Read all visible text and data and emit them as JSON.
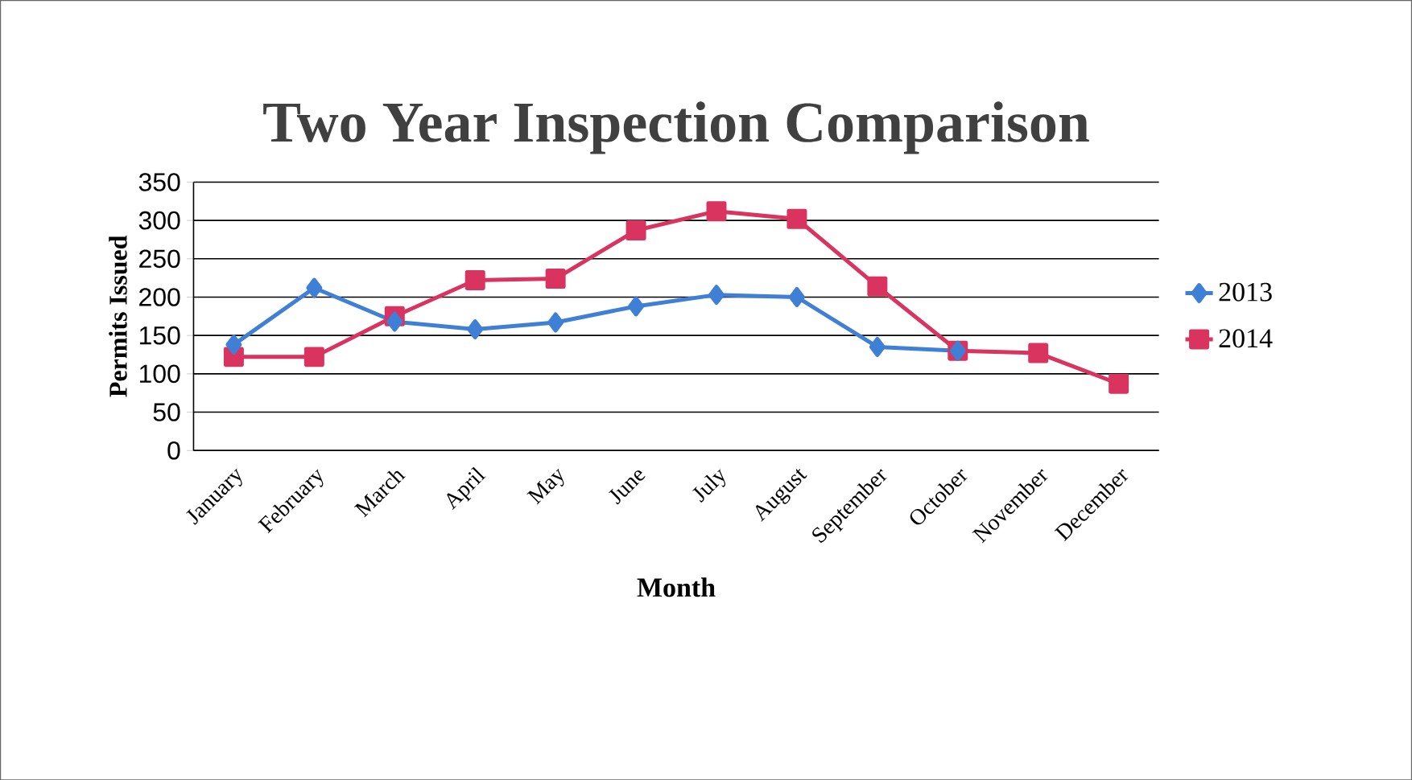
{
  "chart_data": {
    "type": "line",
    "title": "Two Year Inspection Comparison",
    "xlabel": "Month",
    "ylabel": "Permits Issued",
    "categories": [
      "January",
      "February",
      "March",
      "April",
      "May",
      "June",
      "July",
      "August",
      "September",
      "October",
      "November",
      "December"
    ],
    "series": [
      {
        "name": "2013",
        "color": "#3f7fd6",
        "marker": "diamond",
        "values": [
          138,
          212,
          168,
          158,
          167,
          188,
          203,
          200,
          135,
          130,
          null,
          null
        ]
      },
      {
        "name": "2014",
        "color": "#d9345f",
        "marker": "square",
        "values": [
          122,
          122,
          175,
          222,
          224,
          287,
          312,
          302,
          214,
          130,
          127,
          87
        ]
      }
    ],
    "ylim": [
      0,
      350
    ],
    "yticks": [
      0,
      50,
      100,
      150,
      200,
      250,
      300,
      350
    ],
    "grid": "y",
    "legend": "right",
    "line_style": "solid"
  }
}
